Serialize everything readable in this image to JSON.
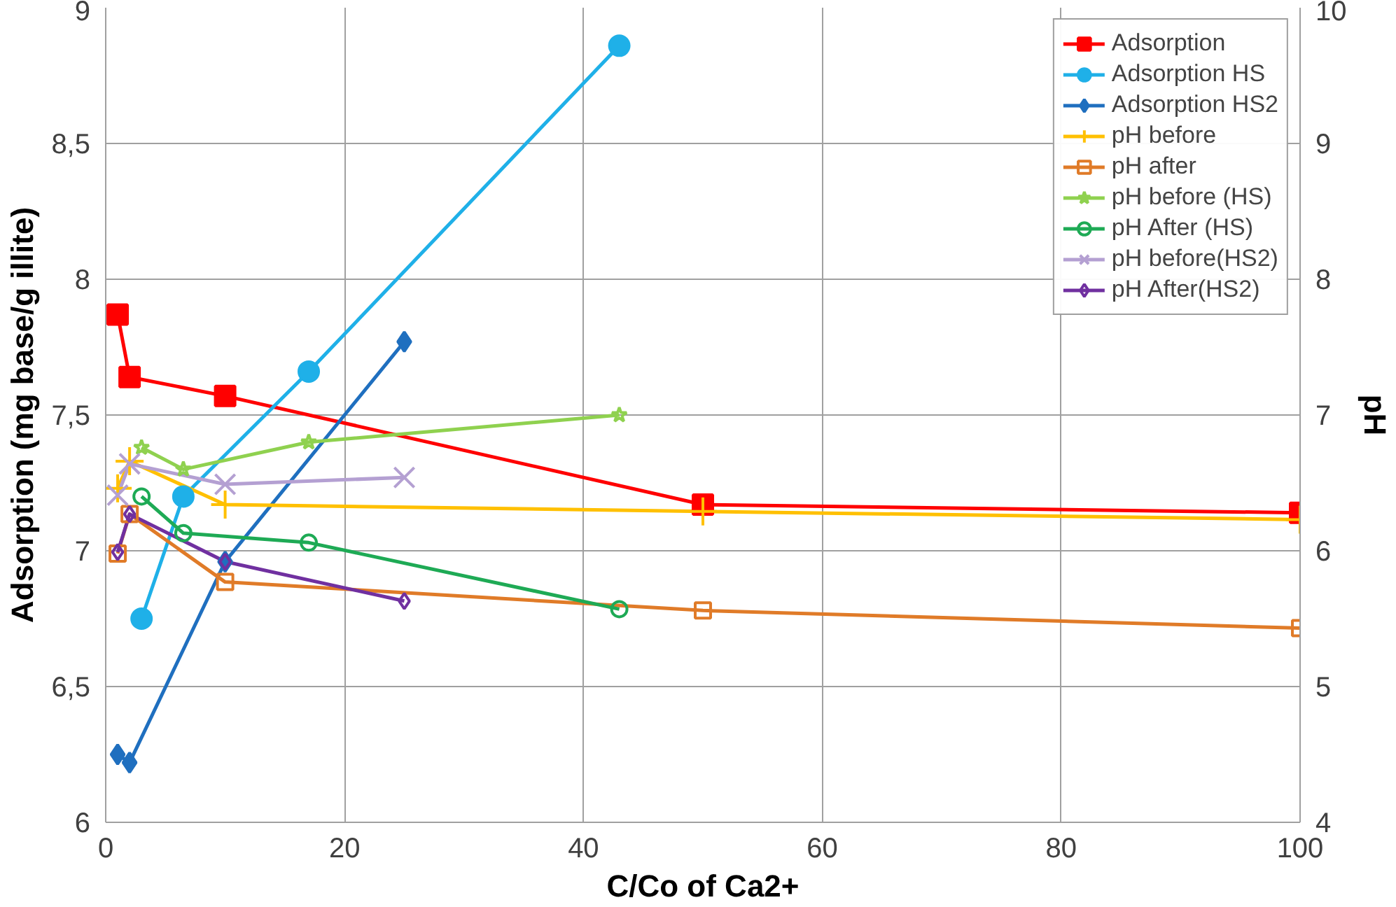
{
  "chart_data": {
    "type": "line",
    "xlabel": "C/Co of Ca2+",
    "ylabel": "Adsorption (mg base/g illite)",
    "y2label": "pH",
    "xlim": [
      0,
      100
    ],
    "xticks": [
      0,
      20,
      40,
      60,
      80,
      100
    ],
    "ylim": [
      6,
      9
    ],
    "yticks": [
      6,
      {
        "value": 6.5,
        "label": "6,5"
      },
      7,
      {
        "value": 7.5,
        "label": "7,5"
      },
      8,
      {
        "value": 8.5,
        "label": "8,5"
      },
      9
    ],
    "y2lim": [
      4,
      10
    ],
    "y2ticks": [
      4,
      5,
      6,
      7,
      8,
      9,
      10
    ],
    "grid": true,
    "legend": "top right",
    "series": [
      {
        "name": "Adsorption",
        "color": "#ff0000",
        "marker": "square",
        "x": [
          1,
          2,
          10,
          50,
          100
        ],
        "values": [
          7.87,
          7.64,
          7.57,
          7.17,
          7.14
        ]
      },
      {
        "name": "Adsorption HS",
        "color": "#1fb0e8",
        "marker": "circle",
        "x": [
          3,
          6.5,
          17,
          43
        ],
        "values": [
          6.75,
          7.2,
          7.66,
          8.86
        ]
      },
      {
        "name": "Adsorption HS2",
        "color": "#1f6fbf",
        "marker": "diamond",
        "x": [
          1,
          2,
          10,
          25
        ],
        "values": [
          6.25,
          6.22,
          6.96,
          7.77
        ]
      },
      {
        "name": "pH before",
        "color": "#ffc000",
        "marker": "cross",
        "axis": "y2",
        "x": [
          1,
          2,
          10,
          50,
          100
        ],
        "values": [
          6.46,
          6.66,
          6.34,
          6.29,
          6.23
        ]
      },
      {
        "name": "pH after",
        "color": "#e07b28",
        "marker": "square",
        "axis": "y2",
        "x": [
          1,
          2,
          10,
          50,
          100
        ],
        "values": [
          5.98,
          6.27,
          5.77,
          5.56,
          5.43
        ]
      },
      {
        "name": "pH before (HS)",
        "color": "#8fd14f",
        "marker": "star",
        "axis": "y2",
        "x": [
          3,
          6.5,
          17,
          43
        ],
        "values": [
          6.76,
          6.6,
          6.8,
          7.0
        ]
      },
      {
        "name": "pH After (HS)",
        "color": "#1eaa55",
        "marker": "circle",
        "axis": "y2",
        "x": [
          3,
          6.5,
          17,
          43
        ],
        "values": [
          6.4,
          6.13,
          6.06,
          5.57
        ]
      },
      {
        "name": "pH before(HS2)",
        "color": "#b4a0d2",
        "marker": "x",
        "axis": "y2",
        "x": [
          1,
          2,
          10,
          25
        ],
        "values": [
          6.41,
          6.64,
          6.49,
          6.54
        ]
      },
      {
        "name": "pH After(HS2)",
        "color": "#7030a0",
        "marker": "diamond",
        "axis": "y2",
        "x": [
          1,
          2,
          10,
          25
        ],
        "values": [
          5.99,
          6.27,
          5.92,
          5.63
        ]
      }
    ]
  }
}
